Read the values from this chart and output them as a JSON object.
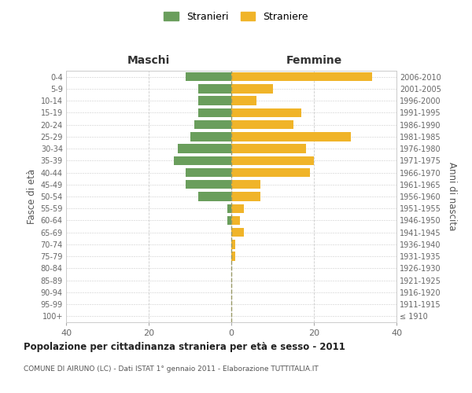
{
  "age_groups": [
    "100+",
    "95-99",
    "90-94",
    "85-89",
    "80-84",
    "75-79",
    "70-74",
    "65-69",
    "60-64",
    "55-59",
    "50-54",
    "45-49",
    "40-44",
    "35-39",
    "30-34",
    "25-29",
    "20-24",
    "15-19",
    "10-14",
    "5-9",
    "0-4"
  ],
  "birth_years": [
    "≤ 1910",
    "1911-1915",
    "1916-1920",
    "1921-1925",
    "1926-1930",
    "1931-1935",
    "1936-1940",
    "1941-1945",
    "1946-1950",
    "1951-1955",
    "1956-1960",
    "1961-1965",
    "1966-1970",
    "1971-1975",
    "1976-1980",
    "1981-1985",
    "1986-1990",
    "1991-1995",
    "1996-2000",
    "2001-2005",
    "2006-2010"
  ],
  "maschi": [
    0,
    0,
    0,
    0,
    0,
    0,
    0,
    0,
    1,
    1,
    8,
    11,
    11,
    14,
    13,
    10,
    9,
    8,
    8,
    8,
    11
  ],
  "femmine": [
    0,
    0,
    0,
    0,
    0,
    1,
    1,
    3,
    2,
    3,
    7,
    7,
    19,
    20,
    18,
    29,
    15,
    17,
    6,
    10,
    34
  ],
  "male_color": "#6a9e5c",
  "female_color": "#f0b429",
  "title": "Popolazione per cittadinanza straniera per età e sesso - 2011",
  "subtitle": "COMUNE DI AIRUNO (LC) - Dati ISTAT 1° gennaio 2011 - Elaborazione TUTTITALIA.IT",
  "xlabel_left": "Maschi",
  "xlabel_right": "Femmine",
  "ylabel_left": "Fasce di età",
  "ylabel_right": "Anni di nascita",
  "legend_male": "Stranieri",
  "legend_female": "Straniere",
  "xlim": 40,
  "bar_height": 0.75,
  "background_color": "#ffffff",
  "grid_color": "#cccccc",
  "spine_color": "#cccccc"
}
